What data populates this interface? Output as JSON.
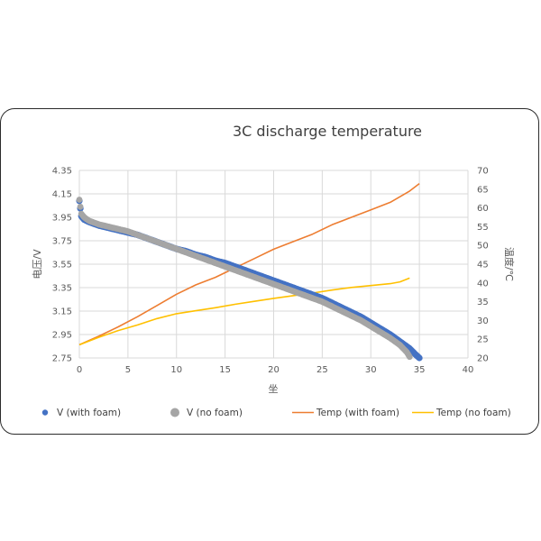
{
  "chart_data": {
    "type": "line",
    "title": "3C discharge temperature",
    "xlabel": "坐",
    "ylabel_left": "电压/V",
    "ylabel_right": "温度/℃",
    "xlim": [
      0,
      40
    ],
    "x_ticks": [
      0,
      5,
      10,
      15,
      20,
      25,
      30,
      35,
      40
    ],
    "ylim_left": [
      2.75,
      4.35
    ],
    "y_ticks_left": [
      "2.75",
      "2.95",
      "3.15",
      "3.35",
      "3.55",
      "3.75",
      "3.95",
      "4.15",
      "4.35"
    ],
    "ylim_right": [
      20,
      70
    ],
    "y_ticks_right": [
      "20",
      "25",
      "30",
      "35",
      "40",
      "45",
      "50",
      "55",
      "60",
      "65",
      "70"
    ],
    "grid": true,
    "legend_position": "bottom",
    "series": [
      {
        "name": "V  (with foam)",
        "axis": "left",
        "style": "dots",
        "color": "#4472C4",
        "points": [
          [
            0,
            4.09
          ],
          [
            0.2,
            3.96
          ],
          [
            0.5,
            3.93
          ],
          [
            1,
            3.91
          ],
          [
            2,
            3.88
          ],
          [
            3,
            3.86
          ],
          [
            4,
            3.84
          ],
          [
            5,
            3.82
          ],
          [
            6,
            3.8
          ],
          [
            7,
            3.77
          ],
          [
            8,
            3.74
          ],
          [
            9,
            3.71
          ],
          [
            10,
            3.68
          ],
          [
            11,
            3.66
          ],
          [
            12,
            3.63
          ],
          [
            13,
            3.61
          ],
          [
            14,
            3.58
          ],
          [
            15,
            3.56
          ],
          [
            16,
            3.53
          ],
          [
            17,
            3.5
          ],
          [
            18,
            3.47
          ],
          [
            19,
            3.44
          ],
          [
            20,
            3.41
          ],
          [
            21,
            3.38
          ],
          [
            22,
            3.35
          ],
          [
            23,
            3.32
          ],
          [
            24,
            3.29
          ],
          [
            25,
            3.26
          ],
          [
            26,
            3.22
          ],
          [
            27,
            3.18
          ],
          [
            28,
            3.14
          ],
          [
            29,
            3.1
          ],
          [
            30,
            3.05
          ],
          [
            31,
            3.0
          ],
          [
            32,
            2.95
          ],
          [
            33,
            2.89
          ],
          [
            34,
            2.83
          ],
          [
            34.6,
            2.78
          ],
          [
            35,
            2.75
          ]
        ]
      },
      {
        "name": "V  (no foam)",
        "axis": "left",
        "style": "dots",
        "color": "#A5A5A5",
        "points": [
          [
            0,
            4.1
          ],
          [
            0.2,
            3.98
          ],
          [
            0.5,
            3.95
          ],
          [
            1,
            3.92
          ],
          [
            2,
            3.89
          ],
          [
            3,
            3.87
          ],
          [
            4,
            3.85
          ],
          [
            5,
            3.83
          ],
          [
            6,
            3.8
          ],
          [
            7,
            3.77
          ],
          [
            8,
            3.74
          ],
          [
            9,
            3.71
          ],
          [
            10,
            3.68
          ],
          [
            11,
            3.65
          ],
          [
            12,
            3.62
          ],
          [
            13,
            3.59
          ],
          [
            14,
            3.56
          ],
          [
            15,
            3.53
          ],
          [
            16,
            3.5
          ],
          [
            17,
            3.47
          ],
          [
            18,
            3.44
          ],
          [
            19,
            3.41
          ],
          [
            20,
            3.38
          ],
          [
            21,
            3.35
          ],
          [
            22,
            3.32
          ],
          [
            23,
            3.29
          ],
          [
            24,
            3.26
          ],
          [
            25,
            3.23
          ],
          [
            26,
            3.19
          ],
          [
            27,
            3.15
          ],
          [
            28,
            3.11
          ],
          [
            29,
            3.07
          ],
          [
            30,
            3.02
          ],
          [
            31,
            2.97
          ],
          [
            32,
            2.92
          ],
          [
            33,
            2.86
          ],
          [
            33.7,
            2.8
          ],
          [
            34,
            2.76
          ]
        ]
      },
      {
        "name": "Temp (with foam)",
        "axis": "right",
        "style": "line",
        "color": "#ED7D31",
        "points": [
          [
            0,
            23.5
          ],
          [
            2,
            25.8
          ],
          [
            4,
            28.3
          ],
          [
            6,
            31.0
          ],
          [
            8,
            34.0
          ],
          [
            10,
            37.0
          ],
          [
            12,
            39.5
          ],
          [
            14,
            41.5
          ],
          [
            16,
            44.0
          ],
          [
            18,
            46.5
          ],
          [
            20,
            49.0
          ],
          [
            22,
            51.0
          ],
          [
            24,
            53.0
          ],
          [
            26,
            55.5
          ],
          [
            28,
            57.5
          ],
          [
            30,
            59.5
          ],
          [
            32,
            61.5
          ],
          [
            34,
            64.5
          ],
          [
            35,
            66.5
          ]
        ]
      },
      {
        "name": "Temp  (no foam)",
        "axis": "right",
        "style": "line",
        "color": "#FFC000",
        "points": [
          [
            0,
            23.5
          ],
          [
            2,
            25.5
          ],
          [
            4,
            27.3
          ],
          [
            6,
            28.8
          ],
          [
            8,
            30.5
          ],
          [
            10,
            31.8
          ],
          [
            12,
            32.6
          ],
          [
            14,
            33.4
          ],
          [
            16,
            34.3
          ],
          [
            18,
            35.1
          ],
          [
            20,
            35.9
          ],
          [
            22,
            36.6
          ],
          [
            24,
            37.3
          ],
          [
            26,
            38.1
          ],
          [
            28,
            38.8
          ],
          [
            30,
            39.3
          ],
          [
            32,
            39.8
          ],
          [
            33,
            40.3
          ],
          [
            34,
            41.3
          ]
        ]
      }
    ]
  }
}
